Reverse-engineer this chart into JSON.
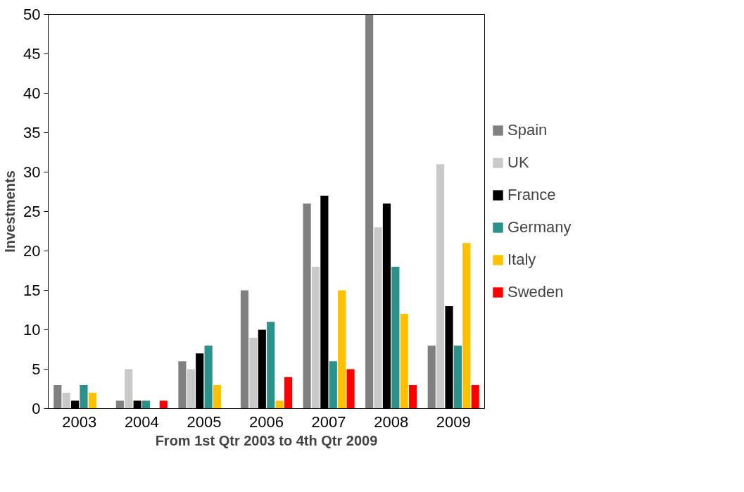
{
  "chart_data": {
    "type": "bar",
    "xlabel": "From 1st Qtr 2003 to 4th Qtr 2009",
    "ylabel": "Investments",
    "categories": [
      "2003",
      "2004",
      "2005",
      "2006",
      "2007",
      "2008",
      "2009"
    ],
    "series": [
      {
        "name": "Spain",
        "color": "#808080",
        "values": [
          3,
          1,
          6,
          15,
          26,
          50,
          8
        ]
      },
      {
        "name": "UK",
        "color": "#c9c9c9",
        "values": [
          2,
          5,
          5,
          9,
          18,
          23,
          31
        ]
      },
      {
        "name": "France",
        "color": "#000000",
        "values": [
          1,
          1,
          7,
          10,
          27,
          26,
          13
        ]
      },
      {
        "name": "Germany",
        "color": "#2a918b",
        "values": [
          3,
          1,
          8,
          11,
          6,
          18,
          8
        ]
      },
      {
        "name": "Italy",
        "color": "#ffc000",
        "values": [
          2,
          0,
          3,
          1,
          15,
          12,
          21
        ]
      },
      {
        "name": "Sweden",
        "color": "#ff0000",
        "values": [
          0,
          1,
          0,
          4,
          5,
          3,
          3
        ]
      }
    ],
    "ylim": [
      0,
      50
    ],
    "yticks": [
      0,
      5,
      10,
      15,
      20,
      25,
      30,
      35,
      40,
      45,
      50
    ],
    "grid": false,
    "legend": "right"
  }
}
